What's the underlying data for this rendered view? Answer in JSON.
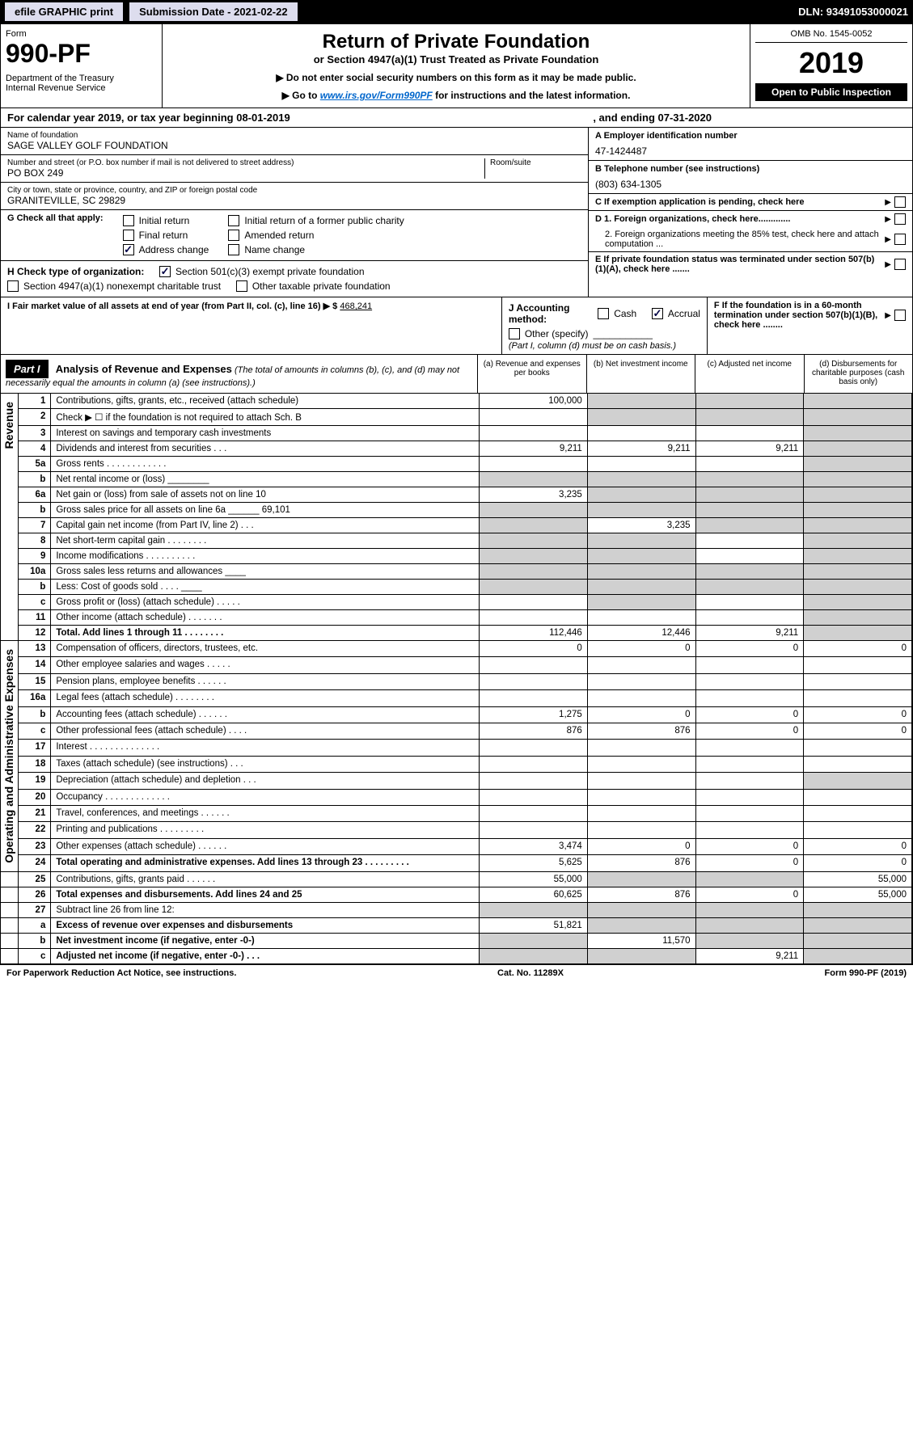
{
  "topbar": {
    "efile": "efile GRAPHIC print",
    "submission": "Submission Date - 2021-02-22",
    "dln": "DLN: 93491053000021"
  },
  "header": {
    "formLabel": "Form",
    "formNum": "990-PF",
    "dept": "Department of the Treasury\nInternal Revenue Service",
    "title": "Return of Private Foundation",
    "subtitle": "or Section 4947(a)(1) Trust Treated as Private Foundation",
    "note1": "▶ Do not enter social security numbers on this form as it may be made public.",
    "note2Pre": "▶ Go to ",
    "note2Link": "www.irs.gov/Form990PF",
    "note2Post": " for instructions and the latest information.",
    "omb": "OMB No. 1545-0052",
    "year": "2019",
    "open": "Open to Public Inspection"
  },
  "calendar": {
    "text": "For calendar year 2019, or tax year beginning 08-01-2019",
    "ending": ", and ending 07-31-2020"
  },
  "info": {
    "nameLabel": "Name of foundation",
    "name": "SAGE VALLEY GOLF FOUNDATION",
    "addrLabel": "Number and street (or P.O. box number if mail is not delivered to street address)",
    "addr": "PO BOX 249",
    "roomLabel": "Room/suite",
    "cityLabel": "City or town, state or province, country, and ZIP or foreign postal code",
    "city": "GRANITEVILLE, SC  29829",
    "einLabel": "A Employer identification number",
    "ein": "47-1424487",
    "phoneLabel": "B Telephone number (see instructions)",
    "phone": "(803) 634-1305",
    "cLabel": "C If exemption application is pending, check here",
    "d1": "D 1. Foreign organizations, check here.............",
    "d2": "2. Foreign organizations meeting the 85% test, check here and attach computation ...",
    "eLabel": "E  If private foundation status was terminated under section 507(b)(1)(A), check here .......",
    "fLabel": "F  If the foundation is in a 60-month termination under section 507(b)(1)(B), check here ........"
  },
  "checks": {
    "gLabel": "G Check all that apply:",
    "initial": "Initial return",
    "initialFormer": "Initial return of a former public charity",
    "final": "Final return",
    "amended": "Amended return",
    "addressChange": "Address change",
    "nameChange": "Name change",
    "hLabel": "H Check type of organization:",
    "h501": "Section 501(c)(3) exempt private foundation",
    "h4947": "Section 4947(a)(1) nonexempt charitable trust",
    "hOther": "Other taxable private foundation",
    "iLabel": "I Fair market value of all assets at end of year (from Part II, col. (c), line 16) ▶ $",
    "iValue": "468,241",
    "jLabel": "J Accounting method:",
    "jCash": "Cash",
    "jAccrual": "Accrual",
    "jOther": "Other (specify)",
    "jNote": "(Part I, column (d) must be on cash basis.)"
  },
  "part1": {
    "badge": "Part I",
    "title": "Analysis of Revenue and Expenses",
    "titleNote": " (The total of amounts in columns (b), (c), and (d) may not necessarily equal the amounts in column (a) (see instructions).)",
    "colA": "(a)    Revenue and expenses per books",
    "colB": "(b)   Net investment income",
    "colC": "(c)   Adjusted net income",
    "colD": "(d)   Disbursements for charitable purposes (cash basis only)"
  },
  "sections": {
    "revenue": "Revenue",
    "expenses": "Operating and Administrative Expenses"
  },
  "rows": [
    {
      "n": "1",
      "desc": "Contributions, gifts, grants, etc., received (attach schedule)",
      "a": "100,000",
      "b": "",
      "c": "",
      "d": "",
      "bs": true,
      "cs": true,
      "ds": true
    },
    {
      "n": "2",
      "desc": "Check ▶ ☐ if the foundation is not required to attach Sch. B",
      "a": "",
      "b": "",
      "c": "",
      "d": "",
      "bs": true,
      "cs": true,
      "ds": true
    },
    {
      "n": "3",
      "desc": "Interest on savings and temporary cash investments",
      "a": "",
      "b": "",
      "c": "",
      "d": "",
      "ds": true
    },
    {
      "n": "4",
      "desc": "Dividends and interest from securities  .  .  .",
      "a": "9,211",
      "b": "9,211",
      "c": "9,211",
      "d": "",
      "ds": true
    },
    {
      "n": "5a",
      "desc": "Gross rents  .  .  .  .  .  .  .  .  .  .  .  .",
      "a": "",
      "b": "",
      "c": "",
      "d": "",
      "ds": true
    },
    {
      "n": "b",
      "desc": "Net rental income or (loss)  ________",
      "a": "",
      "b": "",
      "c": "",
      "d": "",
      "as": true,
      "bs": true,
      "cs": true,
      "ds": true
    },
    {
      "n": "6a",
      "desc": "Net gain or (loss) from sale of assets not on line 10",
      "a": "3,235",
      "b": "",
      "c": "",
      "d": "",
      "bs": true,
      "cs": true,
      "ds": true
    },
    {
      "n": "b",
      "desc": "Gross sales price for all assets on line 6a ______ 69,101",
      "a": "",
      "b": "",
      "c": "",
      "d": "",
      "as": true,
      "bs": true,
      "cs": true,
      "ds": true
    },
    {
      "n": "7",
      "desc": "Capital gain net income (from Part IV, line 2)  .  .  .",
      "a": "",
      "b": "3,235",
      "c": "",
      "d": "",
      "as": true,
      "cs": true,
      "ds": true
    },
    {
      "n": "8",
      "desc": "Net short-term capital gain  .  .  .  .  .  .  .  .",
      "a": "",
      "b": "",
      "c": "",
      "d": "",
      "as": true,
      "bs": true,
      "ds": true
    },
    {
      "n": "9",
      "desc": "Income modifications  .  .  .  .  .  .  .  .  .  .",
      "a": "",
      "b": "",
      "c": "",
      "d": "",
      "as": true,
      "bs": true,
      "ds": true
    },
    {
      "n": "10a",
      "desc": "Gross sales less returns and allowances  ____",
      "a": "",
      "b": "",
      "c": "",
      "d": "",
      "as": true,
      "bs": true,
      "cs": true,
      "ds": true
    },
    {
      "n": "b",
      "desc": "Less: Cost of goods sold  .  .  .  .  ____",
      "a": "",
      "b": "",
      "c": "",
      "d": "",
      "as": true,
      "bs": true,
      "cs": true,
      "ds": true
    },
    {
      "n": "c",
      "desc": "Gross profit or (loss) (attach schedule)  .  .  .  .  .",
      "a": "",
      "b": "",
      "c": "",
      "d": "",
      "bs": true,
      "ds": true
    },
    {
      "n": "11",
      "desc": "Other income (attach schedule)  .  .  .  .  .  .  .",
      "a": "",
      "b": "",
      "c": "",
      "d": "",
      "ds": true
    },
    {
      "n": "12",
      "desc": "Total. Add lines 1 through 11  .  .  .  .  .  .  .  .",
      "a": "112,446",
      "b": "12,446",
      "c": "9,211",
      "d": "",
      "bold": true,
      "ds": true
    },
    {
      "n": "13",
      "desc": "Compensation of officers, directors, trustees, etc.",
      "a": "0",
      "b": "0",
      "c": "0",
      "d": "0",
      "sec": "exp"
    },
    {
      "n": "14",
      "desc": "Other employee salaries and wages  .  .  .  .  .",
      "a": "",
      "b": "",
      "c": "",
      "d": ""
    },
    {
      "n": "15",
      "desc": "Pension plans, employee benefits  .  .  .  .  .  .",
      "a": "",
      "b": "",
      "c": "",
      "d": ""
    },
    {
      "n": "16a",
      "desc": "Legal fees (attach schedule)  .  .  .  .  .  .  .  .",
      "a": "",
      "b": "",
      "c": "",
      "d": ""
    },
    {
      "n": "b",
      "desc": "Accounting fees (attach schedule)  .  .  .  .  .  .",
      "a": "1,275",
      "b": "0",
      "c": "0",
      "d": "0"
    },
    {
      "n": "c",
      "desc": "Other professional fees (attach schedule)  .  .  .  .",
      "a": "876",
      "b": "876",
      "c": "0",
      "d": "0"
    },
    {
      "n": "17",
      "desc": "Interest  .  .  .  .  .  .  .  .  .  .  .  .  .  .",
      "a": "",
      "b": "",
      "c": "",
      "d": ""
    },
    {
      "n": "18",
      "desc": "Taxes (attach schedule) (see instructions)  .  .  .",
      "a": "",
      "b": "",
      "c": "",
      "d": ""
    },
    {
      "n": "19",
      "desc": "Depreciation (attach schedule) and depletion  .  .  .",
      "a": "",
      "b": "",
      "c": "",
      "d": "",
      "ds": true
    },
    {
      "n": "20",
      "desc": "Occupancy  .  .  .  .  .  .  .  .  .  .  .  .  .",
      "a": "",
      "b": "",
      "c": "",
      "d": ""
    },
    {
      "n": "21",
      "desc": "Travel, conferences, and meetings  .  .  .  .  .  .",
      "a": "",
      "b": "",
      "c": "",
      "d": ""
    },
    {
      "n": "22",
      "desc": "Printing and publications  .  .  .  .  .  .  .  .  .",
      "a": "",
      "b": "",
      "c": "",
      "d": ""
    },
    {
      "n": "23",
      "desc": "Other expenses (attach schedule)  .  .  .  .  .  .",
      "a": "3,474",
      "b": "0",
      "c": "0",
      "d": "0"
    },
    {
      "n": "24",
      "desc": "Total operating and administrative expenses. Add lines 13 through 23  .  .  .  .  .  .  .  .  .",
      "a": "5,625",
      "b": "876",
      "c": "0",
      "d": "0",
      "bold": true
    },
    {
      "n": "25",
      "desc": "Contributions, gifts, grants paid  .  .  .  .  .  .",
      "a": "55,000",
      "b": "",
      "c": "",
      "d": "55,000",
      "bs": true,
      "cs": true
    },
    {
      "n": "26",
      "desc": "Total expenses and disbursements. Add lines 24 and 25",
      "a": "60,625",
      "b": "876",
      "c": "0",
      "d": "55,000",
      "bold": true
    },
    {
      "n": "27",
      "desc": "Subtract line 26 from line 12:",
      "a": "",
      "b": "",
      "c": "",
      "d": "",
      "as": true,
      "bs": true,
      "cs": true,
      "ds": true,
      "noexp": true
    },
    {
      "n": "a",
      "desc": "Excess of revenue over expenses and disbursements",
      "a": "51,821",
      "b": "",
      "c": "",
      "d": "",
      "bold": true,
      "bs": true,
      "cs": true,
      "ds": true
    },
    {
      "n": "b",
      "desc": "Net investment income (if negative, enter -0-)",
      "a": "",
      "b": "11,570",
      "c": "",
      "d": "",
      "bold": true,
      "as": true,
      "cs": true,
      "ds": true
    },
    {
      "n": "c",
      "desc": "Adjusted net income (if negative, enter -0-)  .  .  .",
      "a": "",
      "b": "",
      "c": "9,211",
      "d": "",
      "bold": true,
      "as": true,
      "bs": true,
      "ds": true
    }
  ],
  "footer": {
    "left": "For Paperwork Reduction Act Notice, see instructions.",
    "center": "Cat. No. 11289X",
    "right": "Form 990-PF (2019)"
  }
}
